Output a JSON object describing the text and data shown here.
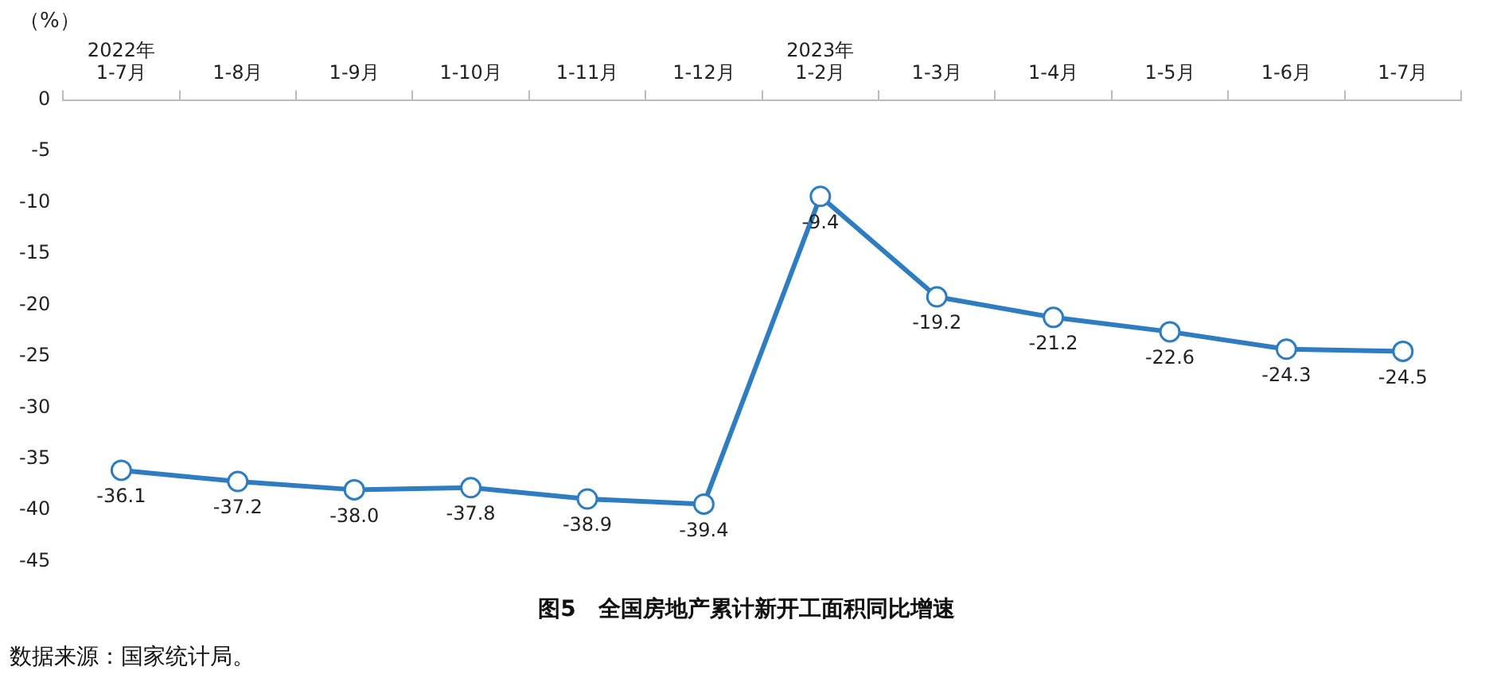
{
  "chart_data": {
    "type": "line",
    "title": "图5　全国房地产累计新开工面积同比增速",
    "ylabel": "（%）",
    "annotations": [
      "数据来源：国家统计局。"
    ],
    "categories": [
      "2022年\n1-7月",
      "1-8月",
      "1-9月",
      "1-10月",
      "1-11月",
      "1-12月",
      "2023年\n1-2月",
      "1-3月",
      "1-4月",
      "1-5月",
      "1-6月",
      "1-7月"
    ],
    "series": [
      {
        "color": "#2e7dc0",
        "values": [
          -36.1,
          -37.2,
          -38.0,
          -37.8,
          -38.9,
          -39.4,
          -9.4,
          -19.2,
          -21.2,
          -22.6,
          -24.3,
          -24.5
        ],
        "value_labels": [
          "-36.1",
          "-37.2",
          "-38.0",
          "-37.8",
          "-38.9",
          "-39.4",
          "-9.4",
          "-19.2",
          "-21.2",
          "-22.6",
          "-24.3",
          "-24.5"
        ]
      }
    ],
    "ylim": [
      -45,
      0
    ],
    "yticks": [
      -45,
      -40,
      -35,
      -30,
      -25,
      -20,
      -15,
      -10,
      -5,
      0
    ],
    "grid": false,
    "legend": false,
    "marker": "circle",
    "line_style": "solid"
  }
}
